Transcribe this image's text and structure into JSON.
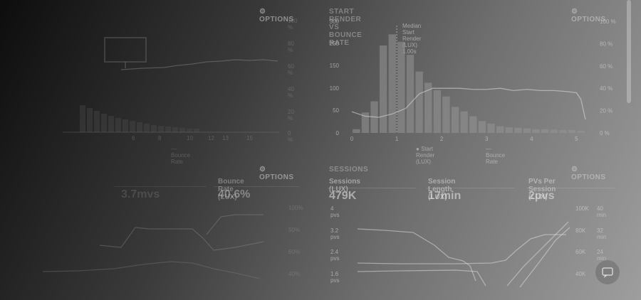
{
  "top_left": {
    "title": "",
    "options_label": "OPTIONS",
    "y_right_ticks": [
      "100 %",
      "80 %",
      "60 %",
      "40 %",
      "20 %",
      "0 %"
    ],
    "x_ticks": [
      "6",
      "8",
      "10",
      "12",
      "13",
      "15"
    ],
    "legend": "— Bounce Rate"
  },
  "top_right": {
    "title": "START RENDER VS BOUNCE RATE",
    "options_label": "OPTIONS",
    "median_label": "Median Start Render (LUX) 1.00s",
    "y_left_ticks": [
      "300",
      "250",
      "150",
      "100",
      "50",
      "0"
    ],
    "y_right_ticks": [
      "100 %",
      "80 %",
      "60 %",
      "40 %",
      "20 %",
      "0 %"
    ],
    "x_ticks": [
      "0",
      "1",
      "2",
      "3",
      "4",
      "5"
    ],
    "legend_bars": "Start Render (LUX)",
    "legend_line": "Bounce Rate",
    "chart_data": {
      "type": "bar",
      "title": "START RENDER VS BOUNCE RATE",
      "xlabel": "",
      "ylabel": "",
      "xlim": [
        0,
        5.2
      ],
      "ylim": [
        0,
        300
      ],
      "categories": [
        0.1,
        0.3,
        0.5,
        0.7,
        0.9,
        1.1,
        1.3,
        1.5,
        1.7,
        1.9,
        2.1,
        2.3,
        2.5,
        2.7,
        2.9,
        3.1,
        3.3,
        3.5,
        3.7,
        3.9,
        4.1,
        4.3,
        4.5,
        4.7,
        4.9,
        5.1
      ],
      "series": [
        {
          "name": "Start Render (LUX)",
          "type": "bar",
          "values": [
            10,
            55,
            85,
            235,
            265,
            245,
            210,
            165,
            135,
            115,
            98,
            70,
            58,
            45,
            32,
            25,
            18,
            15,
            14,
            12,
            10,
            10,
            9,
            8,
            8,
            6
          ]
        },
        {
          "name": "Bounce Rate",
          "type": "line",
          "axis": "right",
          "unit": "%",
          "x": [
            0.0,
            0.3,
            0.6,
            0.9,
            1.2,
            1.5,
            1.8,
            2.1,
            2.4,
            2.7,
            3.0,
            3.3,
            3.6,
            3.9,
            4.2,
            4.5,
            4.8,
            5.0,
            5.1,
            5.2
          ],
          "values": [
            19,
            15,
            14,
            17,
            22,
            35,
            40,
            40,
            40,
            39,
            39,
            40,
            38,
            39,
            38,
            38,
            37,
            36,
            30,
            12
          ]
        }
      ],
      "annotations": [
        "Median Start Render (LUX) 1.00s"
      ],
      "median_x": 1.0
    }
  },
  "bottom_left": {
    "title": "",
    "options_label": "OPTIONS",
    "metric1_label": "",
    "metric1_value": "3.7mvs",
    "metric2_label": "Bounce Rate (LUX)",
    "metric2_value": "40.6%",
    "y_right_ticks": [
      "100%",
      "50%",
      "60%",
      "40%"
    ]
  },
  "bottom_right": {
    "title": "SESSIONS",
    "options_label": "OPTIONS",
    "metrics": [
      {
        "label": "Sessions (LUX)",
        "value": "479K"
      },
      {
        "label": "Session Length (LUX)",
        "value": "17min"
      },
      {
        "label": "PVs Per Session (LUX)",
        "value": "2pvs"
      }
    ],
    "y_left_ticks": [
      "4 pvs",
      "3.2 pvs",
      "2.4 pvs",
      "1.6 pvs"
    ],
    "y_right_ticks": [
      "100K",
      "80K",
      "60K",
      "40K"
    ],
    "y_right2_ticks": [
      "40 min",
      "32 min",
      "24 min",
      "16 min"
    ]
  },
  "colors": {
    "bar": "#8a8a8a",
    "line": "#cfcfcf"
  }
}
